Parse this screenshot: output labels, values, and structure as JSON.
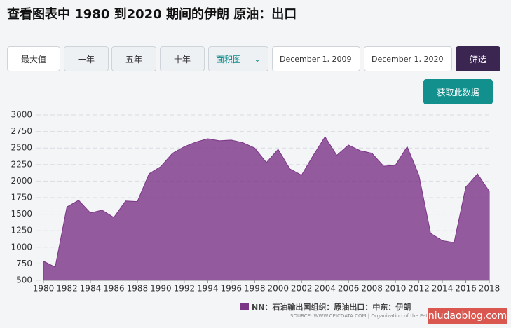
{
  "header": {
    "title": "查看图表中 1980 到2020 期间的伊朗 原油：出口"
  },
  "controls": {
    "ranges": [
      "最大值",
      "一年",
      "五年",
      "十年"
    ],
    "chart_type": "面积图",
    "start_date": "December 1, 2009",
    "end_date": "December 1, 2020",
    "filter": "筛选",
    "get_data": "获取此数据"
  },
  "chart_data": {
    "type": "area",
    "x": [
      1980,
      1981,
      1982,
      1983,
      1984,
      1985,
      1986,
      1987,
      1988,
      1989,
      1990,
      1991,
      1992,
      1993,
      1994,
      1995,
      1996,
      1997,
      1998,
      1999,
      2000,
      2001,
      2002,
      2003,
      2004,
      2005,
      2006,
      2007,
      2008,
      2009,
      2010,
      2011,
      2012,
      2013,
      2014,
      2015,
      2016,
      2017,
      2018
    ],
    "series": [
      {
        "name": "NN：石油输出国组织：原油出口：中东：伊朗",
        "color": "#7b3586",
        "values": [
          790,
          700,
          1610,
          1710,
          1520,
          1560,
          1450,
          1700,
          1690,
          2110,
          2220,
          2420,
          2520,
          2590,
          2640,
          2610,
          2620,
          2580,
          2500,
          2280,
          2480,
          2185,
          2090,
          2390,
          2670,
          2390,
          2545,
          2460,
          2420,
          2225,
          2240,
          2520,
          2090,
          1210,
          1100,
          1070,
          1910,
          2110,
          1845
        ]
      }
    ],
    "xlim": [
      1980,
      2018
    ],
    "xticks": [
      1980,
      1982,
      1984,
      1986,
      1988,
      1990,
      1992,
      1994,
      1996,
      1998,
      2000,
      2002,
      2004,
      2006,
      2008,
      2010,
      2012,
      2014,
      2016,
      2018
    ],
    "ylim": [
      500,
      3000
    ],
    "yticks": [
      500,
      750,
      1000,
      1250,
      1500,
      1750,
      2000,
      2250,
      2500,
      2750,
      3000
    ],
    "grid": true,
    "legend": "bottom",
    "source": "SOURCE: WWW.CEICDATA.COM | Organization of the Petro"
  },
  "watermark": "niudaoblog.com"
}
